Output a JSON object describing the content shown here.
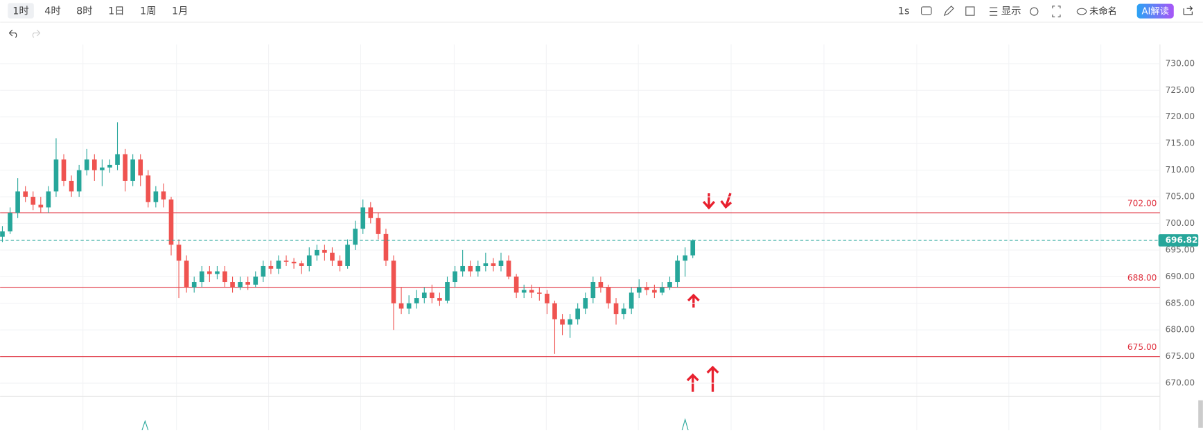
{
  "toolbar": {
    "intervals": [
      "1时",
      "4时",
      "8时",
      "1日",
      "1周",
      "1月"
    ],
    "speed": "1s",
    "display": "显示",
    "layout_name": "未命名",
    "ai": "AI解读"
  },
  "chart_data": {
    "type": "candlestick",
    "up_color": "#26a69a",
    "down_color": "#ef5350",
    "open": [
      697.5,
      698.5,
      702,
      706,
      705,
      703.5,
      703,
      706,
      712,
      708,
      706,
      710,
      712,
      710,
      710.5,
      711,
      713,
      708,
      712,
      709,
      704,
      706,
      704.5,
      696,
      693,
      688,
      689,
      691,
      690.5,
      691,
      689,
      688,
      689,
      688.5,
      690,
      692,
      691.5,
      693,
      692.8,
      692.5,
      692,
      694,
      695,
      694.5,
      693,
      692,
      696,
      699,
      703,
      701,
      698,
      693,
      685,
      684,
      685,
      686,
      687,
      686,
      685.5,
      689,
      691,
      692,
      691,
      692,
      692.5,
      692,
      693,
      690,
      687,
      687.5,
      687,
      686.8,
      685,
      682,
      681,
      682,
      684,
      686,
      689,
      688,
      685,
      683,
      684,
      687,
      688,
      687.5,
      687,
      688,
      689,
      693,
      694
    ],
    "high": [
      699.5,
      703,
      708.5,
      707,
      706,
      705,
      707,
      716,
      713,
      709,
      711,
      714,
      713,
      712,
      712,
      719,
      714,
      713,
      713,
      710,
      707,
      707.5,
      705,
      697,
      694,
      690,
      692,
      692,
      692,
      692,
      690,
      690,
      690,
      691,
      693,
      693,
      694,
      694,
      693.5,
      693,
      695.5,
      696,
      696,
      695.5,
      694,
      697,
      700.5,
      704.5,
      704,
      702,
      699,
      694,
      688,
      686.5,
      687.5,
      688,
      688.5,
      687,
      690,
      692,
      695,
      693,
      693,
      694.5,
      693.5,
      694.5,
      694,
      690.5,
      688.5,
      688.5,
      688,
      687.5,
      685.5,
      683,
      683,
      685,
      687,
      690,
      690,
      688.5,
      686,
      685,
      688,
      689.5,
      689,
      688.5,
      689,
      690,
      694,
      695.5,
      697
    ],
    "low": [
      696.5,
      698,
      701,
      704,
      702.5,
      702,
      702,
      705,
      707,
      705,
      705,
      709,
      708,
      707,
      709.5,
      710,
      706,
      707,
      707,
      703,
      703,
      703,
      694,
      686,
      687,
      687,
      688,
      689,
      689.5,
      688,
      687,
      687.5,
      687.5,
      688,
      689,
      690.5,
      690.5,
      692,
      691.5,
      690.5,
      691,
      693,
      693,
      692,
      691,
      691.5,
      695,
      698,
      700,
      697,
      692,
      680,
      683,
      683,
      684,
      685,
      685,
      684.5,
      685,
      688,
      690,
      690,
      690,
      691,
      691,
      691,
      689.5,
      686,
      686,
      686,
      685.5,
      683,
      675.5,
      679,
      678.5,
      681,
      683,
      685,
      687,
      684,
      681,
      682,
      683,
      686,
      686.5,
      686,
      686.5,
      687.5,
      688,
      690,
      693.5
    ],
    "close": [
      698.5,
      702,
      706,
      705,
      703.5,
      703,
      706,
      712,
      708,
      706,
      710,
      712,
      710,
      710.5,
      711,
      713,
      708,
      712,
      709,
      704,
      706,
      704.5,
      696,
      693,
      688,
      689,
      691,
      690.5,
      691,
      689,
      688,
      689,
      688.5,
      690,
      692,
      691.5,
      693,
      692.8,
      692.5,
      692,
      694,
      695,
      694.5,
      693,
      692,
      696,
      699,
      703,
      701,
      698,
      693,
      685,
      684,
      685,
      686,
      687,
      686,
      685.5,
      689,
      691,
      692,
      691,
      692,
      692.5,
      692,
      693,
      690,
      687,
      687.5,
      687,
      686.8,
      685,
      682,
      681,
      682,
      684,
      686,
      689,
      688,
      685,
      683,
      684,
      687,
      688,
      687.5,
      687,
      688,
      689,
      693,
      694,
      696.82
    ],
    "ylim": [
      667.5,
      733.6
    ],
    "yticks": [
      {
        "value": 670,
        "label": "670.00"
      },
      {
        "value": 675,
        "label": "675.00"
      },
      {
        "value": 680,
        "label": "680.00"
      },
      {
        "value": 685,
        "label": "685.00"
      },
      {
        "value": 690,
        "label": "690.00"
      },
      {
        "value": 695,
        "label": "695.00"
      },
      {
        "value": 700,
        "label": "700.00"
      },
      {
        "value": 705,
        "label": "705.00"
      },
      {
        "value": 710,
        "label": "710.00"
      },
      {
        "value": 715,
        "label": "715.00"
      },
      {
        "value": 720,
        "label": "720.00"
      },
      {
        "value": 725,
        "label": "725.00"
      },
      {
        "value": 730,
        "label": "730.00"
      }
    ],
    "grid": true,
    "levels": [
      {
        "value": 702,
        "label": "702.00"
      },
      {
        "value": 688,
        "label": "688.00"
      },
      {
        "value": 675,
        "label": "675.00"
      }
    ],
    "level_color": "#e0303e",
    "last": {
      "value": 696.82,
      "label": "696.82"
    },
    "last_color": "#26a69a"
  }
}
